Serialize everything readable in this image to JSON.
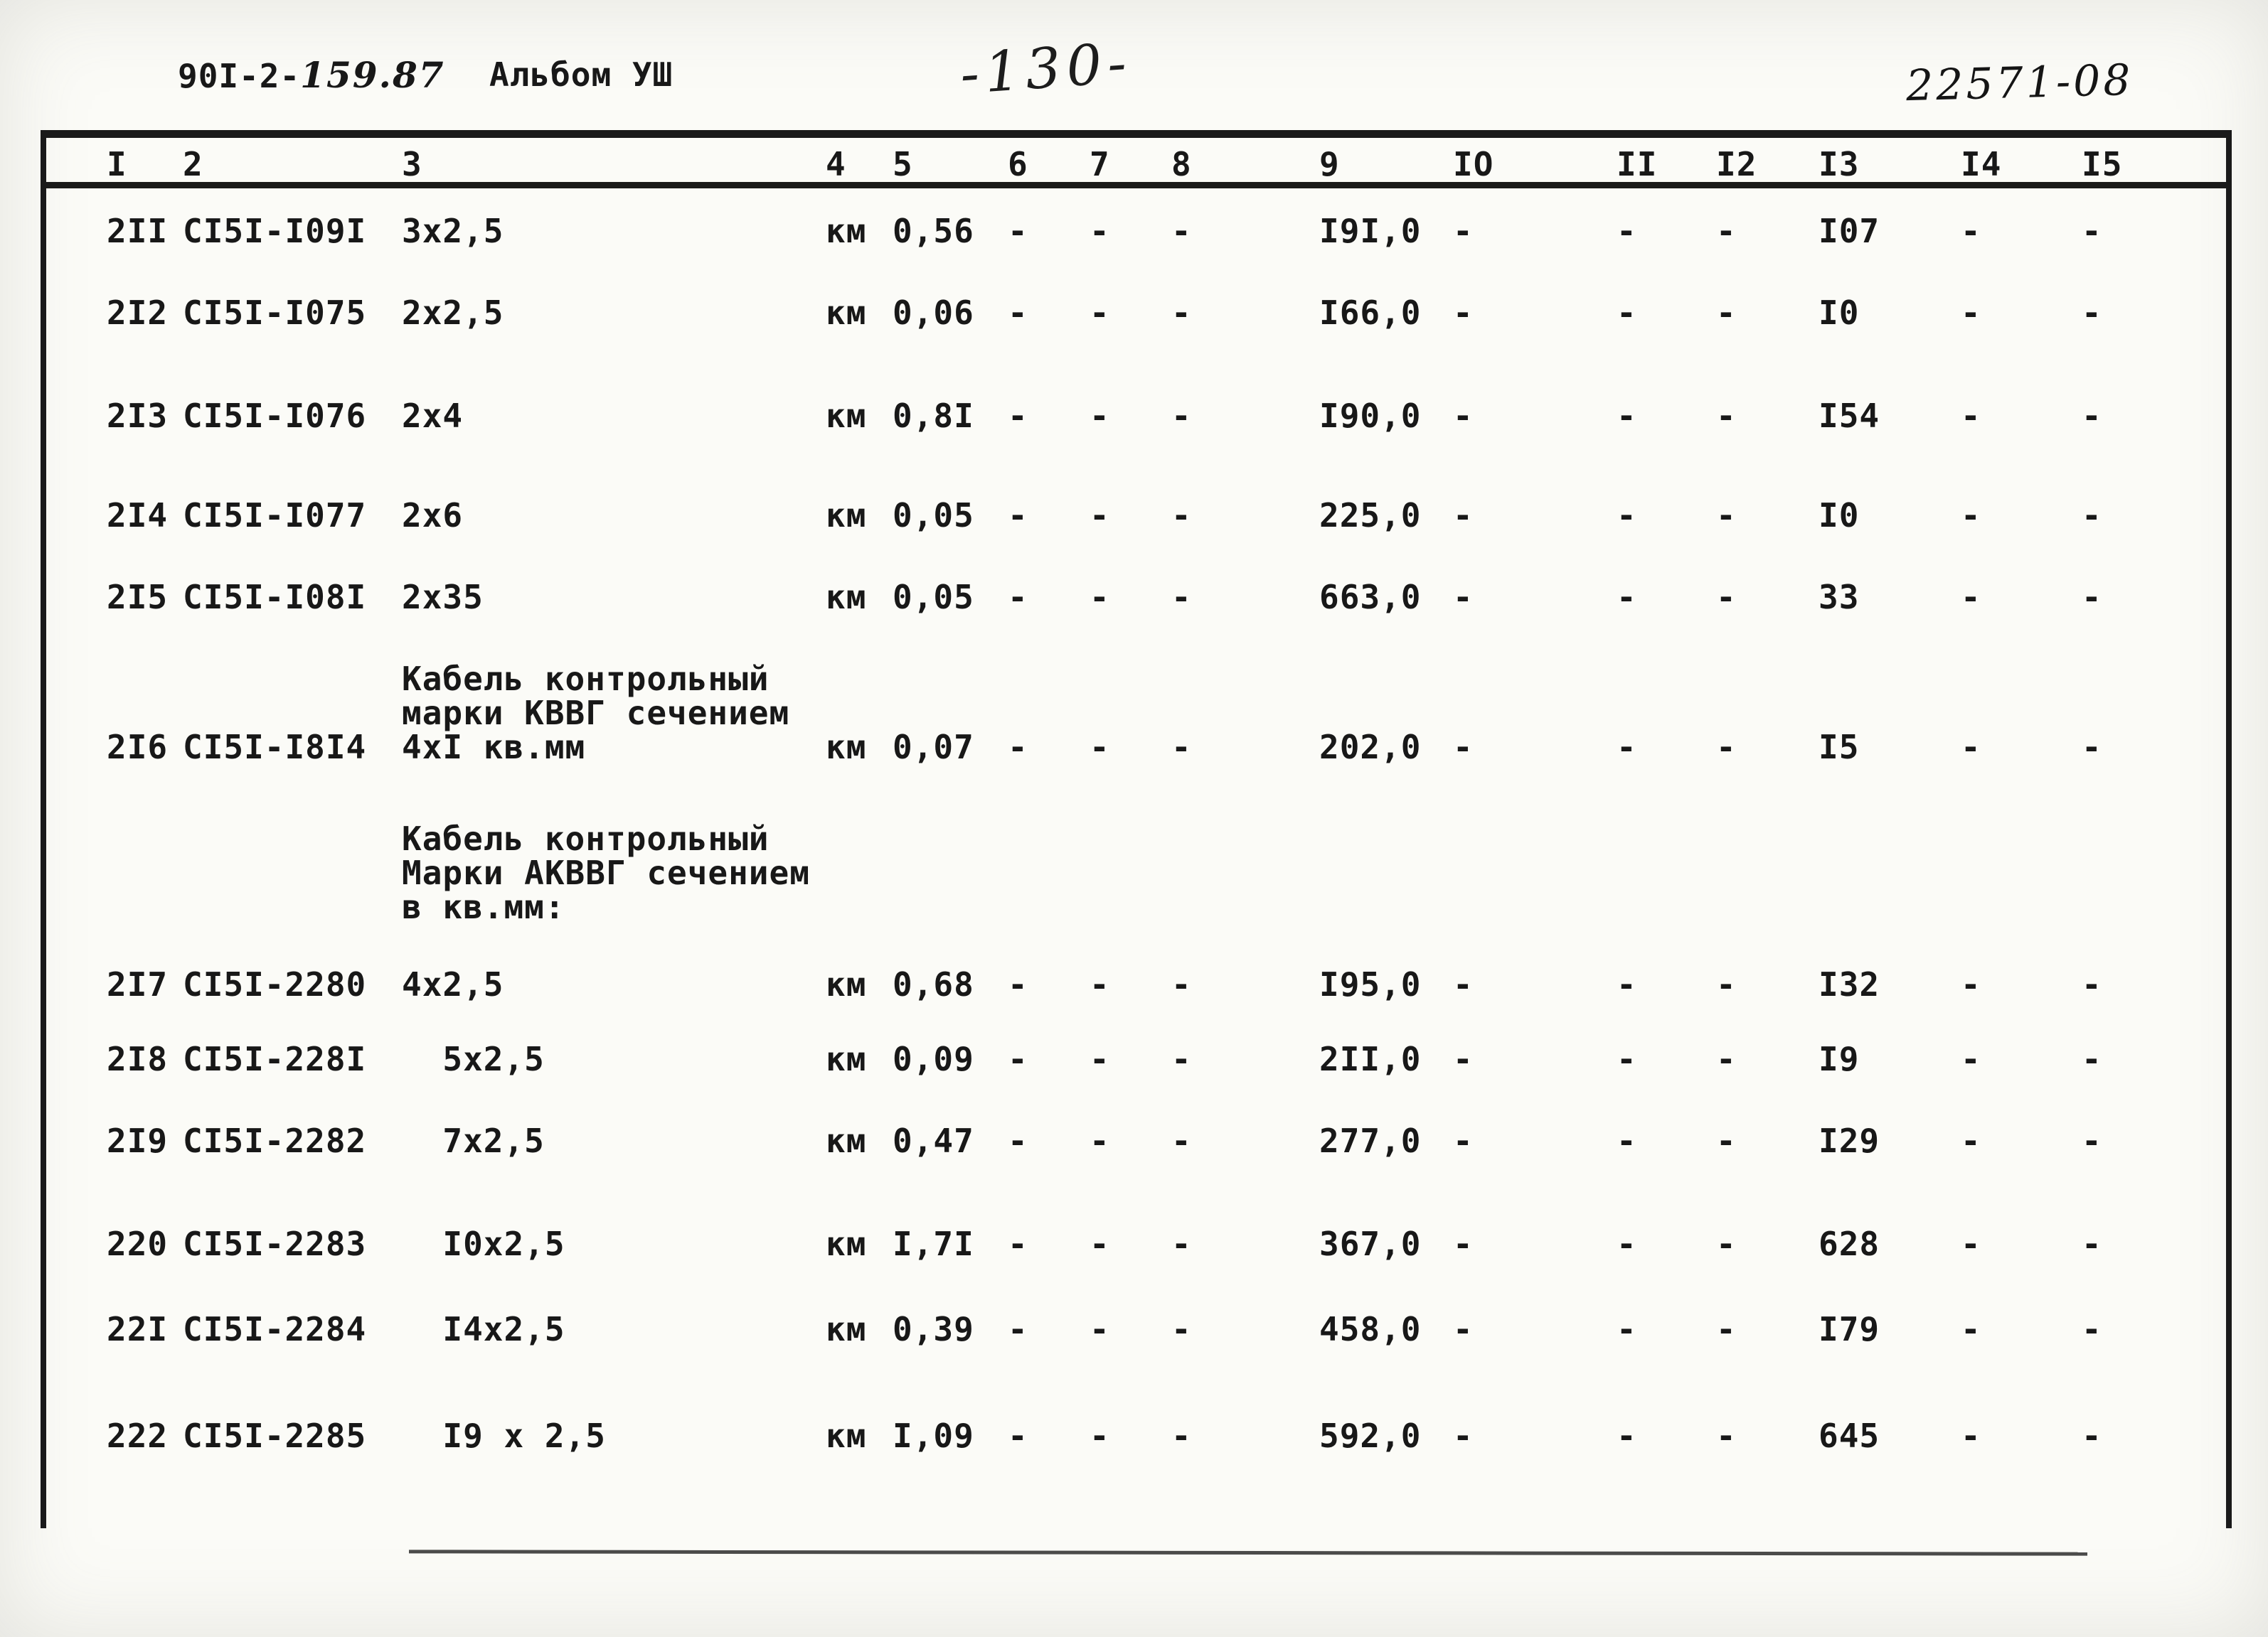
{
  "header": {
    "doc_number_typed": "90I-2-",
    "doc_number_hand": "159.87",
    "album": "Альбом УШ",
    "page_number": "-130-",
    "stamp": "22571-08"
  },
  "table": {
    "columns": [
      "I",
      "2",
      "3",
      "4",
      "5",
      "6",
      "7",
      "8",
      "9",
      "IO",
      "II",
      "I2",
      "I3",
      "I4",
      "I5"
    ],
    "rows": [
      [
        "2II",
        "СI5I-I09I",
        "3х2,5",
        "км",
        "0,56",
        "-",
        "-",
        "-",
        "I9I,0",
        "-",
        "-",
        "-",
        "I07",
        "-",
        "-"
      ],
      [
        "2I2",
        "СI5I-I075",
        "2х2,5",
        "км",
        "0,06",
        "-",
        "-",
        "-",
        "I66,0",
        "-",
        "-",
        "-",
        "I0",
        "-",
        "-"
      ],
      [
        "2I3",
        "СI5I-I076",
        "2х4",
        "км",
        "0,8I",
        "-",
        "-",
        "-",
        "I90,0",
        "-",
        "-",
        "-",
        "I54",
        "-",
        "-"
      ],
      [
        "2I4",
        "СI5I-I077",
        "2х6",
        "км",
        "0,05",
        "-",
        "-",
        "-",
        "225,0",
        "-",
        "-",
        "-",
        "I0",
        "-",
        "-"
      ],
      [
        "2I5",
        "СI5I-I08I",
        "2х35",
        "км",
        "0,05",
        "-",
        "-",
        "-",
        "663,0",
        "-",
        "-",
        "-",
        "33",
        "-",
        "-"
      ],
      [
        "2I6",
        "СI5I-I8I4",
        "Кабель контрольный\nмарки КВВГ сечением\n4хI кв.мм",
        "км",
        "0,07",
        "-",
        "-",
        "-",
        "202,0",
        "-",
        "-",
        "-",
        "I5",
        "-",
        "-"
      ],
      [
        "",
        "",
        "Кабель контрольный\nМарки АКВВГ сечением\nв кв.мм:",
        "",
        "",
        "",
        "",
        "",
        "",
        "",
        "",
        "",
        "",
        "",
        ""
      ],
      [
        "2I7",
        "СI5I-2280",
        "4х2,5",
        "км",
        "0,68",
        "-",
        "-",
        "-",
        "I95,0",
        "-",
        "-",
        "-",
        "I32",
        "-",
        "-"
      ],
      [
        "2I8",
        "СI5I-228I",
        "  5х2,5",
        "км",
        "0,09",
        "-",
        "-",
        "-",
        "2II,0",
        "-",
        "-",
        "-",
        "I9",
        "-",
        "-"
      ],
      [
        "2I9",
        "СI5I-2282",
        "  7х2,5",
        "км",
        "0,47",
        "-",
        "-",
        "-",
        "277,0",
        "-",
        "-",
        "-",
        "I29",
        "-",
        "-"
      ],
      [
        "220",
        "СI5I-2283",
        "  I0х2,5",
        "км",
        "I,7I",
        "-",
        "-",
        "-",
        "367,0",
        "-",
        "-",
        "-",
        "628",
        "-",
        "-"
      ],
      [
        "22I",
        "СI5I-2284",
        "  I4х2,5",
        "км",
        "0,39",
        "-",
        "-",
        "-",
        "458,0",
        "-",
        "-",
        "-",
        "I79",
        "-",
        "-"
      ],
      [
        "222",
        "СI5I-2285",
        "  I9 х 2,5",
        "км",
        "I,09",
        "-",
        "-",
        "-",
        "592,0",
        "-",
        "-",
        "-",
        "645",
        "-",
        "-"
      ]
    ]
  }
}
